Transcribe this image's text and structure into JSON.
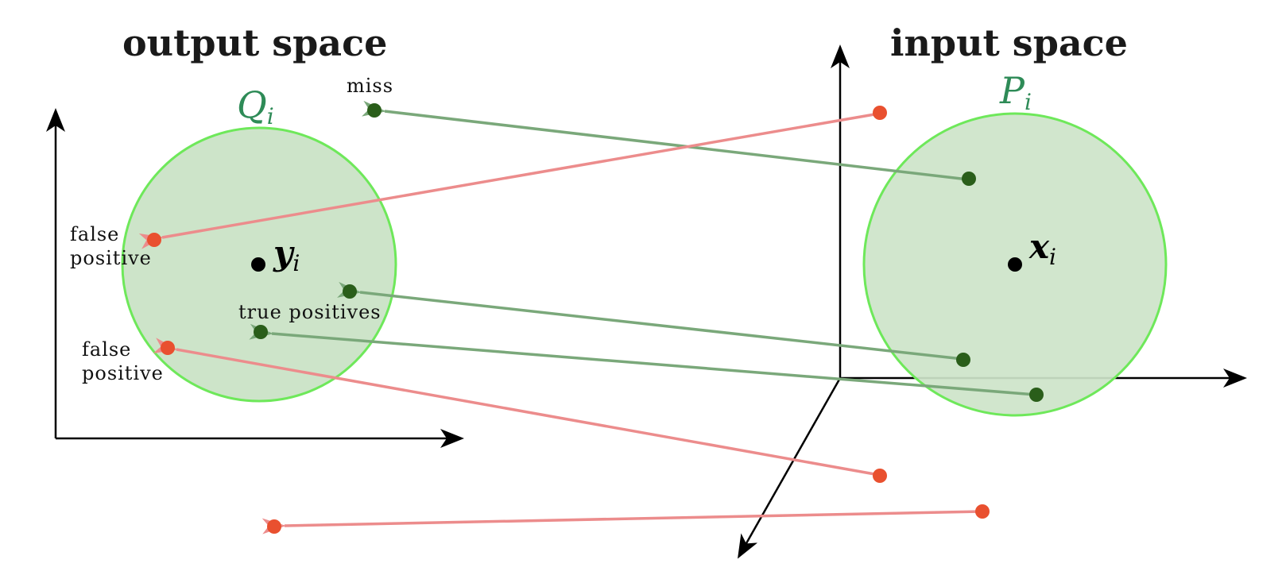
{
  "titles": {
    "output_space": "output space",
    "input_space": "input space"
  },
  "sets": {
    "output": {
      "letter": "Q",
      "sub": "i"
    },
    "input": {
      "letter": "P",
      "sub": "i"
    }
  },
  "centers": {
    "output": {
      "letter": "y",
      "sub": "i"
    },
    "input": {
      "letter": "x",
      "sub": "i"
    }
  },
  "annotations": {
    "miss": "miss",
    "false_positive_1_line1": "false",
    "false_positive_1_line2": "positive",
    "false_positive_2_line1": "false",
    "false_positive_2_line2": "positive",
    "true_positives": "true positives"
  },
  "colors": {
    "circle_fill": "#cde4c9",
    "circle_stroke": "#6ee85a",
    "green_point": "#2a5e1a",
    "red_point": "#e9502f",
    "green_arrow": "#7aa87a",
    "red_arrow": "#ec8c8c",
    "axis": "#000000"
  }
}
